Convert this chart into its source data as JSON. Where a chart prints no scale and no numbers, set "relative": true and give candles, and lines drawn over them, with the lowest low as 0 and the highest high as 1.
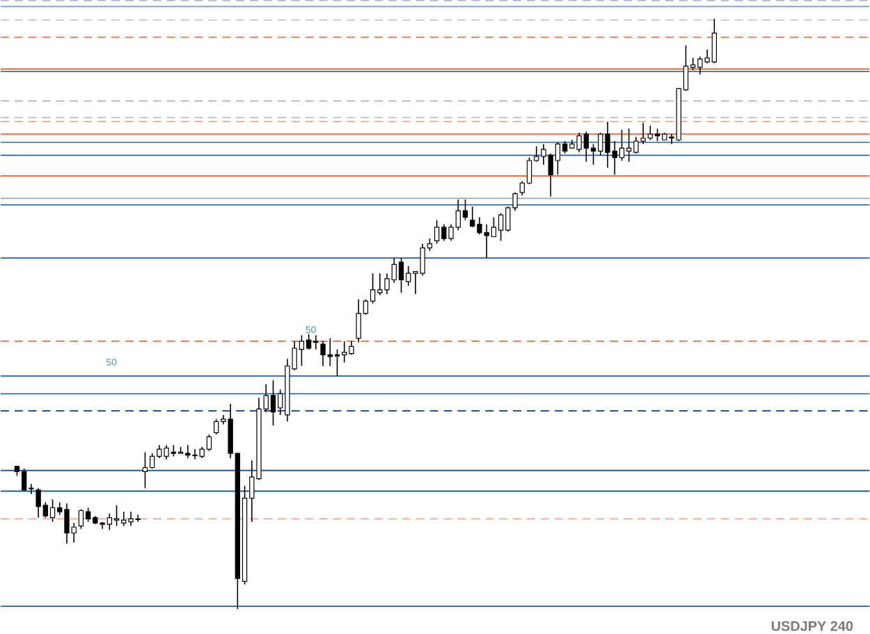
{
  "chart_data": {
    "type": "candlestick",
    "relative": true,
    "categories": [
      null,
      null,
      null,
      null,
      null,
      null,
      null,
      null,
      null,
      null,
      null,
      null,
      null,
      null,
      null,
      null,
      null,
      null,
      null,
      null,
      null,
      null,
      null,
      null,
      null,
      null,
      null,
      null,
      null,
      null,
      null,
      null,
      null,
      null,
      null,
      null,
      null,
      null,
      null,
      null,
      null,
      null,
      null,
      null,
      null,
      null,
      null,
      null,
      null,
      null,
      null,
      null,
      null,
      null,
      null,
      null,
      null,
      null,
      null,
      null,
      null,
      null,
      null,
      null,
      null,
      null,
      null,
      null,
      null,
      null,
      null,
      null,
      null,
      null,
      null,
      null,
      null,
      null,
      null,
      null,
      null,
      null,
      null,
      null,
      null,
      null,
      null,
      null,
      null,
      null,
      null,
      null,
      null,
      null,
      null,
      null,
      null,
      null,
      null
    ],
    "ohlc": [
      [
        0.242,
        0.242,
        0.226,
        0.233
      ],
      [
        0.233,
        0.238,
        0.2,
        0.202
      ],
      [
        0.205,
        0.212,
        0.195,
        0.204
      ],
      [
        0.202,
        0.205,
        0.155,
        0.174
      ],
      [
        0.176,
        0.181,
        0.155,
        0.158
      ],
      [
        0.155,
        0.186,
        0.148,
        0.172
      ],
      [
        0.172,
        0.181,
        0.16,
        0.165
      ],
      [
        0.169,
        0.179,
        0.111,
        0.129
      ],
      [
        0.129,
        0.146,
        0.113,
        0.139
      ],
      [
        0.141,
        0.169,
        0.136,
        0.167
      ],
      [
        0.165,
        0.172,
        0.148,
        0.153
      ],
      [
        0.155,
        0.158,
        0.144,
        0.146
      ],
      [
        0.146,
        0.148,
        0.136,
        0.144
      ],
      [
        0.144,
        0.162,
        0.134,
        0.155
      ],
      [
        0.151,
        0.176,
        0.141,
        0.153
      ],
      [
        0.146,
        0.165,
        0.141,
        0.151
      ],
      [
        0.148,
        0.165,
        0.141,
        0.153
      ],
      [
        0.153,
        0.16,
        0.148,
        0.152
      ],
      [
        0.233,
        0.266,
        0.205,
        0.24
      ],
      [
        0.24,
        0.264,
        0.238,
        0.259
      ],
      [
        0.259,
        0.278,
        0.256,
        0.271
      ],
      [
        0.259,
        0.278,
        0.254,
        0.273
      ],
      [
        0.266,
        0.278,
        0.259,
        0.264
      ],
      [
        0.264,
        0.275,
        0.264,
        0.266
      ],
      [
        0.264,
        0.278,
        0.256,
        0.261
      ],
      [
        0.261,
        0.271,
        0.254,
        0.26
      ],
      [
        0.259,
        0.275,
        0.256,
        0.271
      ],
      [
        0.271,
        0.296,
        0.268,
        0.292
      ],
      [
        0.299,
        0.322,
        0.296,
        0.318
      ],
      [
        0.318,
        0.329,
        0.313,
        0.322
      ],
      [
        0.322,
        0.348,
        0.256,
        0.264
      ],
      [
        0.264,
        0.264,
        0.0,
        0.052
      ],
      [
        0.047,
        0.209,
        0.042,
        0.188
      ],
      [
        0.188,
        0.252,
        0.148,
        0.224
      ],
      [
        0.221,
        0.358,
        0.219,
        0.339
      ],
      [
        0.339,
        0.381,
        0.334,
        0.362
      ],
      [
        0.362,
        0.388,
        0.311,
        0.334
      ],
      [
        0.341,
        0.372,
        0.329,
        0.365
      ],
      [
        0.329,
        0.424,
        0.318,
        0.412
      ],
      [
        0.407,
        0.454,
        0.405,
        0.442
      ],
      [
        0.44,
        0.464,
        0.412,
        0.454
      ],
      [
        0.456,
        0.466,
        0.44,
        0.442
      ],
      [
        0.454,
        0.464,
        0.44,
        0.452
      ],
      [
        0.449,
        0.454,
        0.412,
        0.431
      ],
      [
        0.431,
        0.459,
        0.412,
        0.428
      ],
      [
        0.431,
        0.44,
        0.395,
        0.429
      ],
      [
        0.431,
        0.454,
        0.418,
        0.435
      ],
      [
        0.433,
        0.454,
        0.431,
        0.445
      ],
      [
        0.459,
        0.525,
        0.452,
        0.501
      ],
      [
        0.501,
        0.525,
        0.499,
        0.522
      ],
      [
        0.522,
        0.569,
        0.518,
        0.541
      ],
      [
        0.536,
        0.569,
        0.532,
        0.541
      ],
      [
        0.541,
        0.569,
        0.534,
        0.56
      ],
      [
        0.558,
        0.595,
        0.553,
        0.584
      ],
      [
        0.588,
        0.595,
        0.536,
        0.558
      ],
      [
        0.555,
        0.581,
        0.548,
        0.569
      ],
      [
        0.569,
        0.572,
        0.534,
        0.572
      ],
      [
        0.569,
        0.619,
        0.565,
        0.612
      ],
      [
        0.612,
        0.628,
        0.607,
        0.619
      ],
      [
        0.624,
        0.659,
        0.619,
        0.647
      ],
      [
        0.647,
        0.652,
        0.624,
        0.628
      ],
      [
        0.628,
        0.652,
        0.624,
        0.647
      ],
      [
        0.647,
        0.694,
        0.642,
        0.675
      ],
      [
        0.675,
        0.694,
        0.659,
        0.664
      ],
      [
        0.659,
        0.682,
        0.647,
        0.649
      ],
      [
        0.652,
        0.664,
        0.635,
        0.638
      ],
      [
        0.638,
        0.652,
        0.595,
        0.633
      ],
      [
        0.631,
        0.664,
        0.631,
        0.647
      ],
      [
        0.642,
        0.671,
        0.624,
        0.668
      ],
      [
        0.642,
        0.682,
        0.64,
        0.68
      ],
      [
        0.68,
        0.706,
        0.675,
        0.704
      ],
      [
        0.706,
        0.725,
        0.701,
        0.722
      ],
      [
        0.722,
        0.765,
        0.72,
        0.76
      ],
      [
        0.76,
        0.784,
        0.758,
        0.767
      ],
      [
        0.767,
        0.788,
        0.753,
        0.779
      ],
      [
        0.769,
        0.772,
        0.699,
        0.736
      ],
      [
        0.76,
        0.791,
        0.736,
        0.788
      ],
      [
        0.788,
        0.793,
        0.772,
        0.776
      ],
      [
        0.781,
        0.795,
        0.781,
        0.788
      ],
      [
        0.779,
        0.807,
        0.774,
        0.802
      ],
      [
        0.805,
        0.809,
        0.758,
        0.781
      ],
      [
        0.781,
        0.788,
        0.753,
        0.776
      ],
      [
        0.776,
        0.807,
        0.769,
        0.805
      ],
      [
        0.805,
        0.826,
        0.748,
        0.774
      ],
      [
        0.776,
        0.793,
        0.736,
        0.765
      ],
      [
        0.765,
        0.812,
        0.76,
        0.781
      ],
      [
        0.776,
        0.814,
        0.758,
        0.781
      ],
      [
        0.774,
        0.8,
        0.772,
        0.793
      ],
      [
        0.793,
        0.824,
        0.788,
        0.798
      ],
      [
        0.798,
        0.819,
        0.795,
        0.805
      ],
      [
        0.805,
        0.814,
        0.793,
        0.802
      ],
      [
        0.795,
        0.807,
        0.795,
        0.805
      ],
      [
        0.8,
        0.805,
        0.788,
        0.798
      ],
      [
        0.795,
        0.882,
        0.793,
        0.882
      ],
      [
        0.88,
        0.955,
        0.878,
        0.92
      ],
      [
        0.918,
        0.934,
        0.913,
        0.922
      ],
      [
        0.918,
        0.936,
        0.906,
        0.932
      ],
      [
        0.927,
        0.948,
        0.925,
        0.934
      ],
      [
        0.927,
        1.0,
        0.925,
        0.976
      ]
    ],
    "ref_lines": [
      {
        "axis": "y",
        "value": 1.031,
        "color": "#b4bccb",
        "line_style": "dashed"
      },
      {
        "axis": "y",
        "value": 1.021,
        "color": "#6f9bc9",
        "line_style": "solid"
      },
      {
        "axis": "y",
        "value": 0.998,
        "color": "#c0c8d4",
        "line_style": "dashed"
      },
      {
        "axis": "y",
        "value": 0.969,
        "color": "#e8743b",
        "line_style": "dashed"
      },
      {
        "axis": "y",
        "value": 0.915,
        "color": "#e8501e",
        "line_style": "solid"
      },
      {
        "axis": "y",
        "value": 0.911,
        "color": "#1f5fa0",
        "line_style": "solid"
      },
      {
        "axis": "y",
        "value": 0.861,
        "color": "#b4bccb",
        "line_style": "dashed"
      },
      {
        "axis": "y",
        "value": 0.833,
        "color": "#c0c8d4",
        "line_style": "dashed"
      },
      {
        "axis": "y",
        "value": 0.826,
        "color": "#f4a58a",
        "line_style": "dashed"
      },
      {
        "axis": "y",
        "value": 0.805,
        "color": "#e8501e",
        "line_style": "solid"
      },
      {
        "axis": "y",
        "value": 0.791,
        "color": "#1f5fa0",
        "line_style": "solid"
      },
      {
        "axis": "y",
        "value": 0.769,
        "color": "#1f5fa0",
        "line_style": "solid"
      },
      {
        "axis": "y",
        "value": 0.734,
        "color": "#f05a1e",
        "line_style": "solid"
      },
      {
        "axis": "y",
        "value": 0.696,
        "color": "#9aa8b8",
        "line_style": "solid"
      },
      {
        "axis": "y",
        "value": 0.685,
        "color": "#1f5fa0",
        "line_style": "solid"
      },
      {
        "axis": "y",
        "value": 0.595,
        "color": "#1f5fa0",
        "line_style": "solid"
      },
      {
        "axis": "y",
        "value": 0.454,
        "color": "#e8743b",
        "line_style": "dashed"
      },
      {
        "axis": "y",
        "value": 0.395,
        "color": "#1f5fa0",
        "line_style": "solid"
      },
      {
        "axis": "y",
        "value": 0.365,
        "color": "#1f5fa0",
        "line_style": "solid"
      },
      {
        "axis": "y",
        "value": 0.336,
        "color": "#2a4f80",
        "line_style": "dashed"
      },
      {
        "axis": "y",
        "value": 0.235,
        "color": "#1f5fa0",
        "line_style": "solid"
      },
      {
        "axis": "y",
        "value": 0.2,
        "color": "#1f5fa0",
        "line_style": "solid"
      },
      {
        "axis": "y",
        "value": 0.153,
        "color": "#f4a58a",
        "line_style": "dashed"
      },
      {
        "axis": "y",
        "value": 0.005,
        "color": "#1f5fa0",
        "line_style": "solid"
      }
    ],
    "annotations": [
      "50",
      "50",
      "USDJPY 240"
    ]
  }
}
